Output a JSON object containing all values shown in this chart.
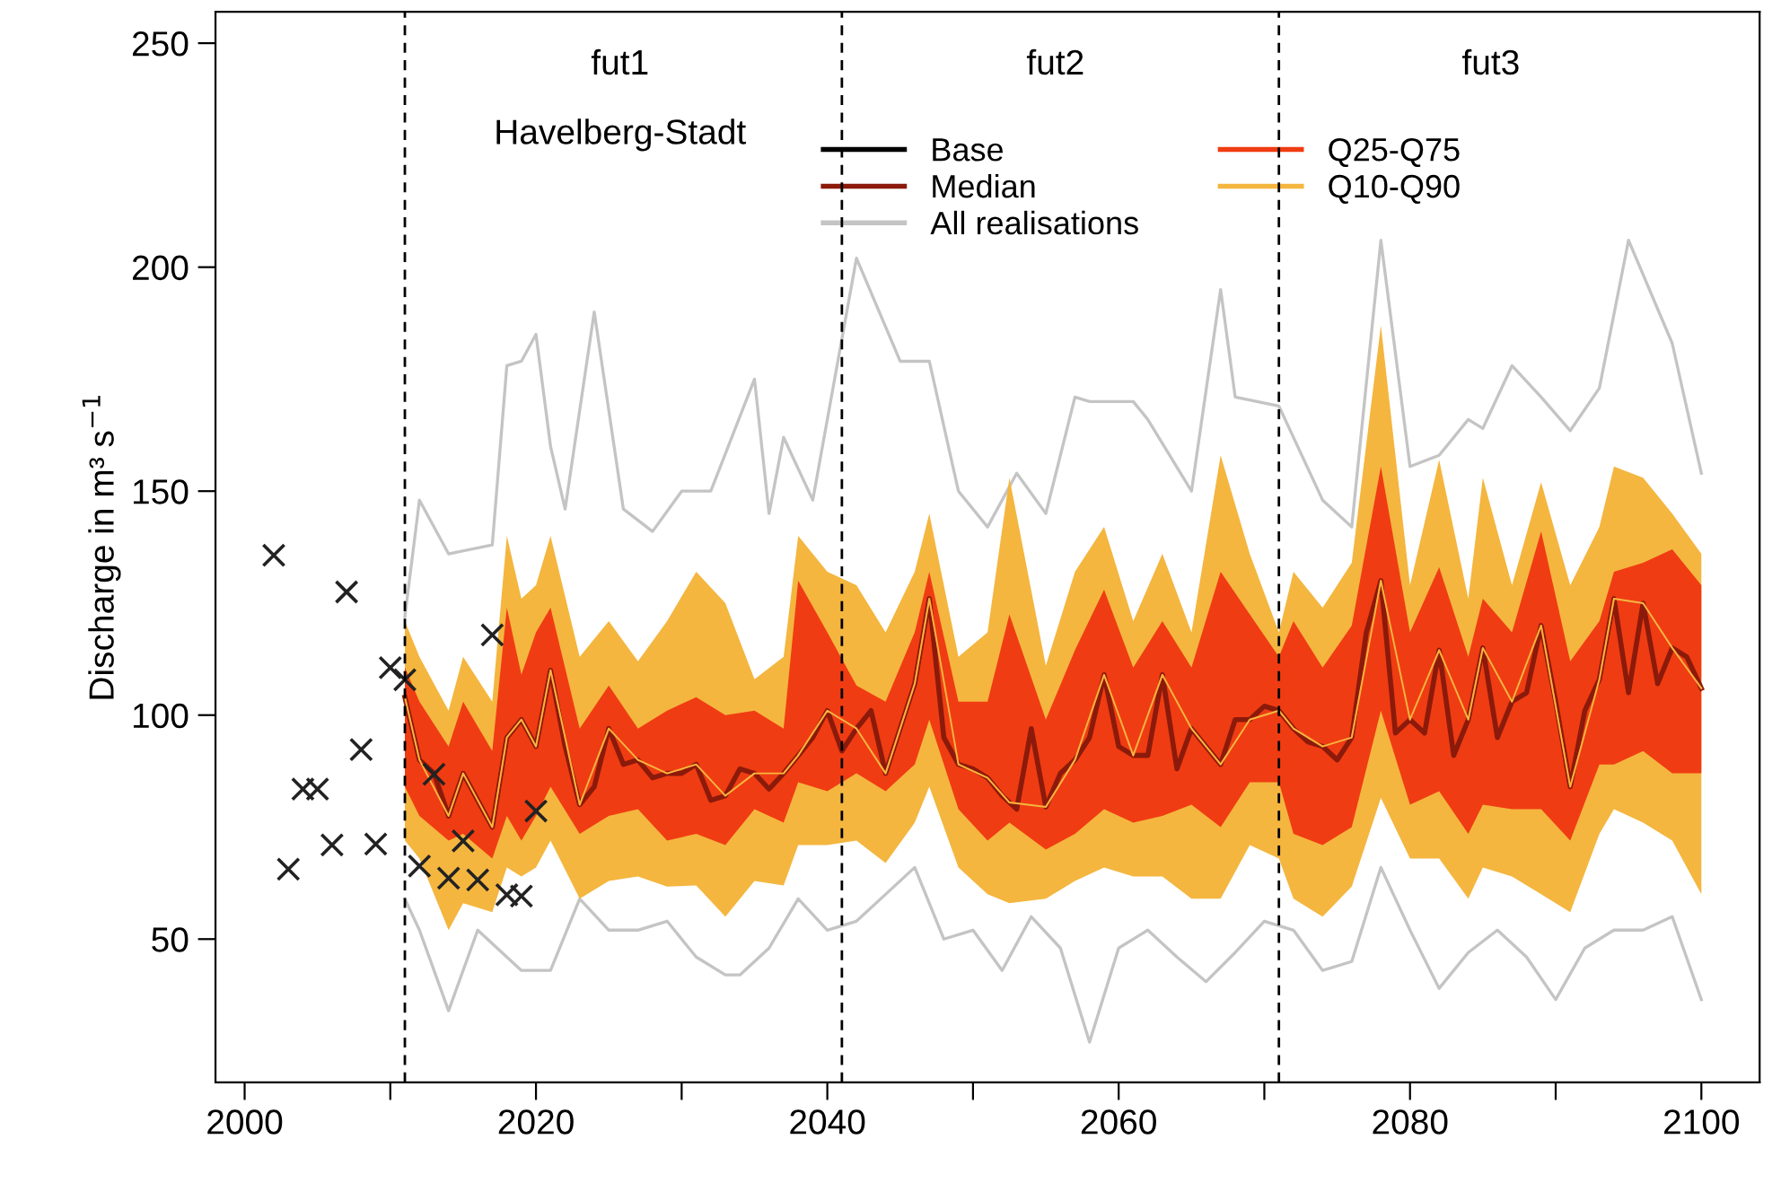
{
  "chart_data": {
    "type": "line",
    "ylabel": "Discharge in m³ s$^{−1}$",
    "xlim": [
      1998,
      2104
    ],
    "ylim": [
      18,
      257
    ],
    "xticks": [
      2000,
      {
        "value": 2010,
        "label": null
      },
      2020,
      {
        "value": 2030,
        "label": null
      },
      2040,
      {
        "value": 2050,
        "label": null
      },
      2060,
      {
        "value": 2070,
        "label": null
      },
      2080,
      {
        "value": 2090,
        "label": null
      },
      2100
    ],
    "yticks": [
      50,
      100,
      150,
      200,
      250
    ],
    "grid": false,
    "legend": "top",
    "ref_lines": [
      {
        "axis": "x",
        "value": 2011,
        "label": null,
        "color": "#000000",
        "line_style": "dashed"
      },
      {
        "axis": "x",
        "value": 2041,
        "label": null,
        "color": "#000000",
        "line_style": "dashed"
      },
      {
        "axis": "x",
        "value": 2071,
        "label": null,
        "color": "#000000",
        "line_style": "dashed"
      }
    ],
    "annotations": [
      "fut1",
      "Havelberg-Stadt",
      "fut2",
      "fut3"
    ],
    "series": [
      {
        "name": "Base",
        "type": "line",
        "color": "#000000"
      },
      {
        "name": "Median",
        "type": "line",
        "color": "#8b1a0a",
        "x": [
          2011,
          2012,
          2013,
          2014,
          2015,
          2016,
          2017,
          2018,
          2019,
          2020,
          2021,
          2022,
          2023,
          2024,
          2025,
          2026,
          2027,
          2028,
          2029,
          2030,
          2031,
          2032,
          2033,
          2034,
          2035,
          2036,
          2037,
          2038,
          2039,
          2040,
          2041,
          2042,
          2043,
          2044,
          2045,
          2046,
          2047,
          2048,
          2049,
          2050,
          2051,
          2052,
          2053,
          2054,
          2055,
          2056,
          2057,
          2058,
          2059,
          2060,
          2061,
          2062,
          2063,
          2064,
          2065,
          2066,
          2067,
          2068,
          2069,
          2070,
          2071,
          2072,
          2073,
          2074,
          2075,
          2076,
          2077,
          2078,
          2079,
          2080,
          2081,
          2082,
          2083,
          2084,
          2085,
          2086,
          2087,
          2088,
          2089,
          2090,
          2091,
          2092,
          2093,
          2094,
          2095,
          2096,
          2097,
          2098,
          2099,
          2100
        ],
        "values": [
          104,
          90,
          87,
          77.5,
          87,
          81,
          75,
          95,
          99,
          93,
          110,
          93,
          80,
          84,
          97,
          89,
          90,
          86,
          87,
          87,
          89,
          81,
          82,
          88,
          87,
          83.5,
          87,
          91,
          95,
          101,
          92,
          97,
          101,
          87,
          97,
          107,
          126,
          95,
          89,
          88,
          86,
          82,
          79,
          97,
          79.5,
          87,
          90,
          95,
          109,
          93,
          91,
          91,
          109,
          88,
          97,
          93,
          89,
          99,
          99,
          102,
          101,
          97,
          94,
          93,
          90,
          95,
          118.5,
          130,
          96,
          99,
          96,
          114.5,
          91,
          99,
          115,
          95,
          103,
          105,
          120,
          103,
          84,
          101,
          108,
          126,
          105,
          125,
          107,
          115,
          113,
          106
        ]
      },
      {
        "name": "All realisations",
        "type": "line",
        "color": "#c4c4c4",
        "x": [
          2011,
          2012,
          2014,
          2017,
          2018,
          2019,
          2020,
          2021,
          2022,
          2024,
          2026,
          2028,
          2030,
          2032,
          2035,
          2036,
          2037,
          2039,
          2042,
          2045,
          2047,
          2049,
          2051,
          2053,
          2055,
          2057,
          2058,
          2060,
          2061,
          2062,
          2065,
          2067,
          2068,
          2071,
          2074,
          2076,
          2078,
          2080,
          2082,
          2084,
          2085,
          2087,
          2089,
          2091,
          2093,
          2095,
          2098,
          2100
        ],
        "values": [
          122,
          148,
          136,
          138,
          178,
          179,
          185,
          160,
          146,
          190,
          146,
          141,
          150,
          150,
          175,
          145,
          162,
          148,
          202,
          179,
          179,
          150,
          142,
          154,
          145,
          171,
          170,
          170,
          170,
          166,
          150,
          195,
          171,
          169,
          148,
          142,
          206,
          155.5,
          158,
          166,
          164,
          178,
          171,
          163.5,
          173,
          206,
          183,
          154
        ]
      },
      {
        "name": null,
        "type": "line",
        "color": "#c4c4c4",
        "x": [
          2011,
          2012,
          2014,
          2016,
          2019,
          2021,
          2023,
          2025,
          2027,
          2029,
          2031,
          2033,
          2034,
          2036,
          2038,
          2040,
          2042,
          2044,
          2046,
          2048,
          2050,
          2052,
          2054,
          2056,
          2058,
          2060,
          2062,
          2064,
          2066,
          2068,
          2070,
          2072,
          2074,
          2076,
          2078,
          2080,
          2082,
          2084,
          2086,
          2088,
          2090,
          2092,
          2094,
          2096,
          2098,
          2100
        ],
        "values": [
          59,
          52,
          34,
          52,
          43,
          43,
          59,
          52,
          52,
          54,
          46,
          42,
          42,
          48,
          59,
          52,
          54,
          60,
          66,
          50,
          52,
          43,
          55,
          48,
          27,
          48,
          52,
          46,
          40.5,
          47,
          54,
          52,
          43,
          45,
          66,
          52,
          39,
          47,
          52,
          46,
          36.5,
          48,
          52,
          52,
          55,
          36.5
        ]
      },
      {
        "name": "Q25-Q75",
        "type": "line",
        "color": "#f03c13",
        "x": [
          2011,
          2012,
          2014,
          2015,
          2017,
          2018,
          2019,
          2020,
          2021,
          2023,
          2025,
          2027,
          2029,
          2031,
          2033,
          2035,
          2037,
          2038,
          2040,
          2042,
          2044,
          2046,
          2047,
          2049,
          2051,
          2052.5,
          2055,
          2057,
          2059,
          2061,
          2063,
          2065,
          2067,
          2069,
          2071,
          2072,
          2074,
          2076,
          2078,
          2080,
          2082,
          2084,
          2085,
          2087,
          2089,
          2091,
          2093,
          2094,
          2096,
          2098,
          2100
        ],
        "values": [
          104,
          90,
          77.5,
          87,
          75,
          95,
          99,
          93,
          110,
          80,
          97,
          90,
          87,
          89,
          82,
          87,
          87,
          91,
          101,
          97,
          87,
          107,
          126,
          89,
          86,
          80.5,
          79.5,
          90,
          109,
          91,
          109,
          97,
          89,
          99,
          101,
          97,
          93,
          95,
          130,
          99,
          114.5,
          99,
          115,
          103,
          120,
          84,
          108,
          126,
          125,
          115,
          106
        ],
        "lower": [
          84,
          77.5,
          72,
          73.5,
          68,
          77.5,
          72,
          77.5,
          84,
          73.5,
          77.5,
          79,
          72,
          73.5,
          71,
          79,
          76,
          85,
          83,
          87,
          83,
          89,
          99,
          79,
          72,
          76,
          70,
          73.5,
          79,
          76,
          77.5,
          80,
          75,
          85,
          85,
          73.5,
          71,
          75,
          101,
          80,
          83,
          73.5,
          80,
          79,
          79,
          72,
          89,
          89,
          92,
          87,
          87
        ],
        "upper": [
          110.6,
          103,
          93,
          103,
          92,
          124,
          109,
          118.5,
          124,
          97,
          106.6,
          97,
          101,
          104,
          100,
          101,
          97,
          130,
          118.5,
          106.6,
          103,
          118.5,
          132,
          103,
          103,
          122.5,
          99,
          114.5,
          128,
          110.6,
          121,
          110.6,
          132,
          122.5,
          113,
          121,
          110.6,
          120,
          155.5,
          118.5,
          133,
          113,
          126,
          118.5,
          141,
          112,
          121,
          132,
          134,
          137,
          129
        ]
      },
      {
        "name": "Q10-Q90",
        "type": "line",
        "color": "#f4b63f",
        "x": [
          2011,
          2012,
          2014,
          2015,
          2017,
          2018,
          2019,
          2020,
          2021,
          2023,
          2025,
          2027,
          2029,
          2031,
          2033,
          2035,
          2037,
          2038,
          2040,
          2042,
          2044,
          2046,
          2047,
          2049,
          2051,
          2052.5,
          2055,
          2057,
          2059,
          2061,
          2063,
          2065,
          2067,
          2069,
          2071,
          2072,
          2074,
          2076,
          2078,
          2080,
          2082,
          2084,
          2085,
          2087,
          2089,
          2091,
          2093,
          2094,
          2096,
          2098,
          2100
        ],
        "values": [
          104,
          90,
          77.5,
          87,
          75,
          95,
          99,
          93,
          110,
          80,
          97,
          90,
          87,
          89,
          82,
          87,
          87,
          91,
          101,
          97,
          87,
          107,
          126,
          89,
          86,
          80.5,
          79.5,
          90,
          109,
          91,
          109,
          97,
          89,
          99,
          101,
          97,
          93,
          95,
          130,
          99,
          114.5,
          99,
          115,
          103,
          120,
          84,
          108,
          126,
          125,
          115,
          106
        ],
        "lower": [
          72,
          68,
          52,
          58,
          56,
          66,
          64,
          66,
          72,
          59,
          63,
          64,
          61.7,
          62,
          55,
          63,
          62,
          71,
          71,
          72,
          67,
          76,
          84,
          66,
          60,
          58,
          59,
          63,
          66,
          64,
          64,
          59,
          59,
          71,
          68,
          59,
          55,
          61.7,
          81.5,
          68,
          68,
          59,
          66,
          64,
          60,
          56,
          73.5,
          79,
          76,
          72,
          60
        ],
        "upper": [
          121,
          113,
          101,
          113,
          103,
          140,
          126,
          129,
          140,
          113,
          121,
          112,
          121,
          132,
          125,
          108,
          113,
          140,
          132,
          129,
          118.5,
          132,
          145,
          113,
          118.5,
          153,
          111,
          132,
          142,
          121,
          136,
          118.5,
          158,
          136,
          118.5,
          132,
          124,
          134,
          187,
          129,
          157,
          126,
          153,
          129,
          152,
          129,
          142,
          155.5,
          153,
          145,
          136
        ]
      },
      {
        "name": null,
        "type": "scatter",
        "marker": "cross",
        "color": "#222222",
        "x": [
          2002,
          2003,
          2004,
          2005,
          2006,
          2007,
          2008,
          2009,
          2010,
          2011,
          2012,
          2013,
          2014,
          2015,
          2016,
          2017,
          2018,
          2019,
          2020
        ],
        "values": [
          135.7,
          65.6,
          83.5,
          83.5,
          71,
          127.5,
          92.3,
          71.2,
          110.6,
          107.9,
          66.3,
          86.8,
          63.6,
          71.9,
          63.2,
          117.9,
          59.9,
          59.6,
          78.6
        ]
      }
    ]
  }
}
